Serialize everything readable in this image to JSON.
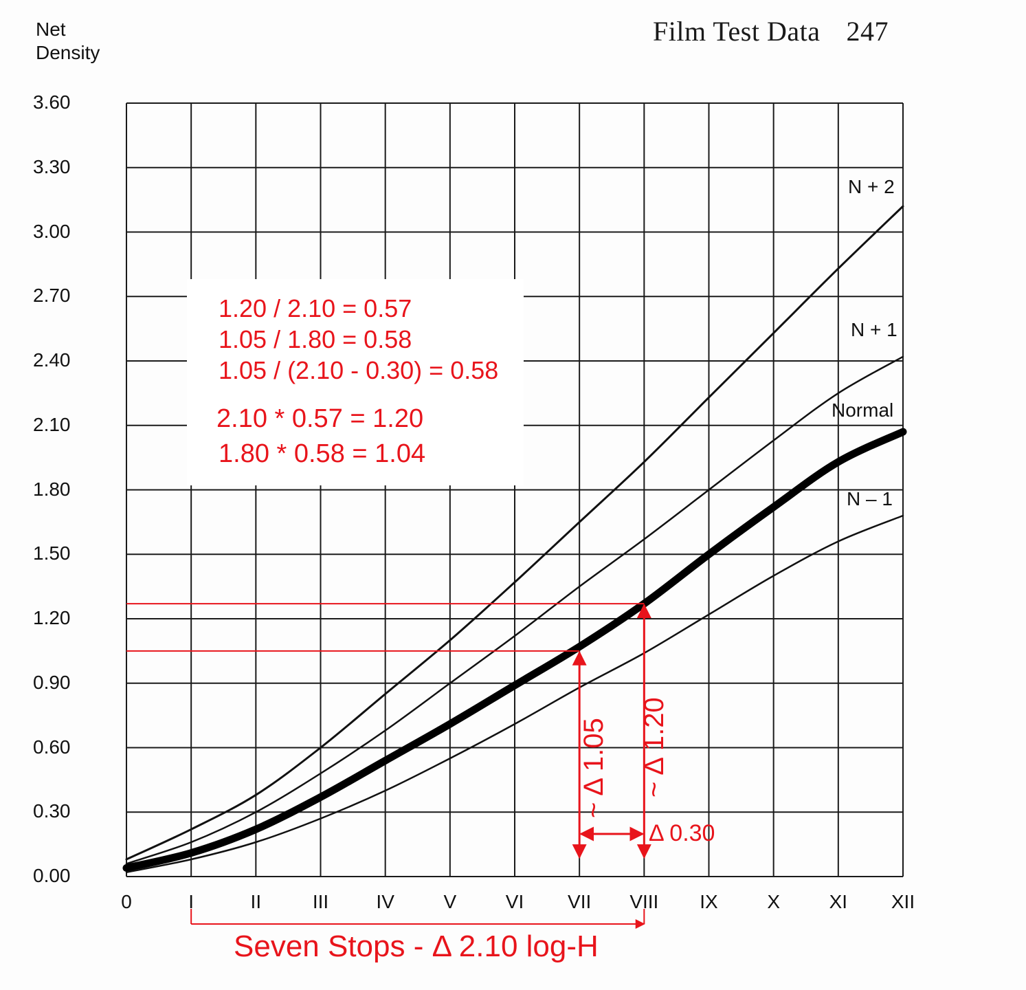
{
  "header": {
    "title": "Film Test Data",
    "page_number": "247"
  },
  "chart_data": {
    "type": "line",
    "ylabel_line1": "Net",
    "ylabel_line2": "Density",
    "y_ticks": [
      "0.00",
      "0.30",
      "0.60",
      "0.90",
      "1.20",
      "1.50",
      "1.80",
      "2.10",
      "2.40",
      "2.70",
      "3.00",
      "3.30",
      "3.60"
    ],
    "ylim": [
      0,
      3.6
    ],
    "x_ticks": [
      "0",
      "I",
      "II",
      "III",
      "IV",
      "V",
      "VI",
      "VII",
      "VIII",
      "IX",
      "X",
      "XI",
      "XII"
    ],
    "xlim": [
      0,
      12
    ],
    "grid": true,
    "series": [
      {
        "name": "N + 2",
        "x": [
          0,
          1,
          2,
          3,
          4,
          5,
          6,
          7,
          8,
          9,
          10,
          11,
          12
        ],
        "y": [
          0.08,
          0.22,
          0.38,
          0.6,
          0.85,
          1.1,
          1.37,
          1.65,
          1.93,
          2.23,
          2.53,
          2.83,
          3.12
        ],
        "color": "#111111",
        "width": 3
      },
      {
        "name": "N + 1",
        "x": [
          0,
          1,
          2,
          3,
          4,
          5,
          6,
          7,
          8,
          9,
          10,
          11,
          12
        ],
        "y": [
          0.06,
          0.16,
          0.3,
          0.48,
          0.68,
          0.9,
          1.12,
          1.35,
          1.57,
          1.8,
          2.03,
          2.25,
          2.42
        ],
        "color": "#111111",
        "width": 2.5
      },
      {
        "name": "Normal",
        "x": [
          0,
          1,
          2,
          3,
          4,
          5,
          6,
          7,
          8,
          9,
          10,
          11,
          12
        ],
        "y": [
          0.04,
          0.11,
          0.22,
          0.37,
          0.54,
          0.71,
          0.89,
          1.07,
          1.27,
          1.5,
          1.72,
          1.93,
          2.07
        ],
        "color": "#000000",
        "width": 11
      },
      {
        "name": "N – 1",
        "x": [
          0,
          1,
          2,
          3,
          4,
          5,
          6,
          7,
          8,
          9,
          10,
          11,
          12
        ],
        "y": [
          0.02,
          0.08,
          0.16,
          0.27,
          0.4,
          0.55,
          0.71,
          0.88,
          1.04,
          1.22,
          1.4,
          1.56,
          1.68
        ],
        "color": "#111111",
        "width": 2.5
      }
    ]
  },
  "annotations": {
    "notes": [
      "1.20 / 2.10 = 0.57",
      "1.05 / 1.80 = 0.58",
      "1.05 / (2.10 - 0.30) = 0.58",
      "2.10 * 0.57 = 1.20",
      "1.80 * 0.58 = 1.04"
    ],
    "delta_105": "~ Δ 1.05",
    "delta_120": "~ Δ 1.20",
    "delta_030": "Δ 0.30",
    "seven_stops": "Seven Stops - Δ 2.10 log-H",
    "color": "#e8141b",
    "ref_levels": [
      1.27,
      1.05
    ],
    "ref_x": [
      7,
      8
    ],
    "span_x": [
      1,
      8
    ]
  }
}
